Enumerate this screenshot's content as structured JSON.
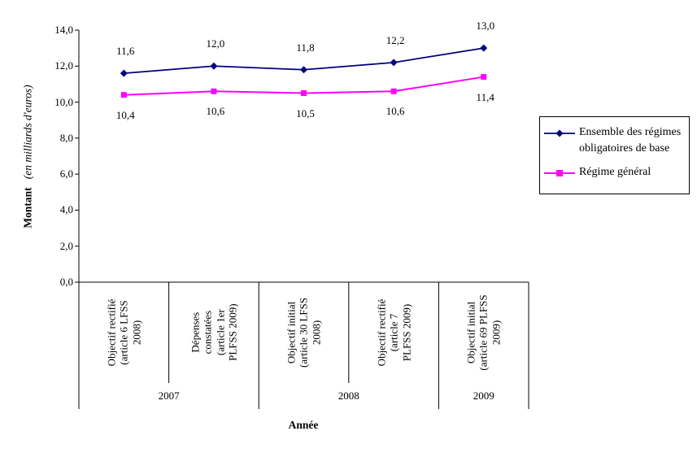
{
  "chart_data": {
    "type": "line",
    "xlabel": "Année",
    "ylabel_bold": "Montant",
    "ylabel_italic": "(en milliards d'euros)",
    "ylim": [
      0,
      14
    ],
    "ytick_values": [
      0,
      2,
      4,
      6,
      8,
      10,
      12,
      14
    ],
    "ytick_labels": [
      "0,0",
      "2,0",
      "4,0",
      "6,0",
      "8,0",
      "10,0",
      "12,0",
      "14,0"
    ],
    "grid": false,
    "legend_position": "right",
    "categories": [
      "Objectif rectifié\n(article 6 LFSS\n2008)",
      "Dépenses\nconstatées\n(article 1er\nPLFSS 2009)",
      "Objectif initial\n(article 30 LFSS\n2008)",
      "Objectif rectifié\n(article 7\nPLFSS 2009)",
      "Objectif initial\n(article 69 PLFSS\n2009)"
    ],
    "year_groups": [
      {
        "label": "2007",
        "span": 2
      },
      {
        "label": "2008",
        "span": 2
      },
      {
        "label": "2009",
        "span": 1
      }
    ],
    "series": [
      {
        "name": "Ensemble des régimes obligatoires de base",
        "legend_lines": "Ensemble des régimes\nobligatoires de base",
        "color": "#000080",
        "marker": "diamond",
        "values": [
          11.6,
          12.0,
          11.8,
          12.2,
          13.0
        ],
        "labels": [
          "11,6",
          "12,0",
          "11,8",
          "12,2",
          "13,0"
        ],
        "label_position": "above"
      },
      {
        "name": "Régime général",
        "legend_lines": "Régime général",
        "color": "#FF00FF",
        "marker": "square",
        "values": [
          10.4,
          10.6,
          10.5,
          10.6,
          11.4
        ],
        "labels": [
          "10,4",
          "10,6",
          "10,5",
          "10,6",
          "11,4"
        ],
        "label_position": "below"
      }
    ]
  }
}
